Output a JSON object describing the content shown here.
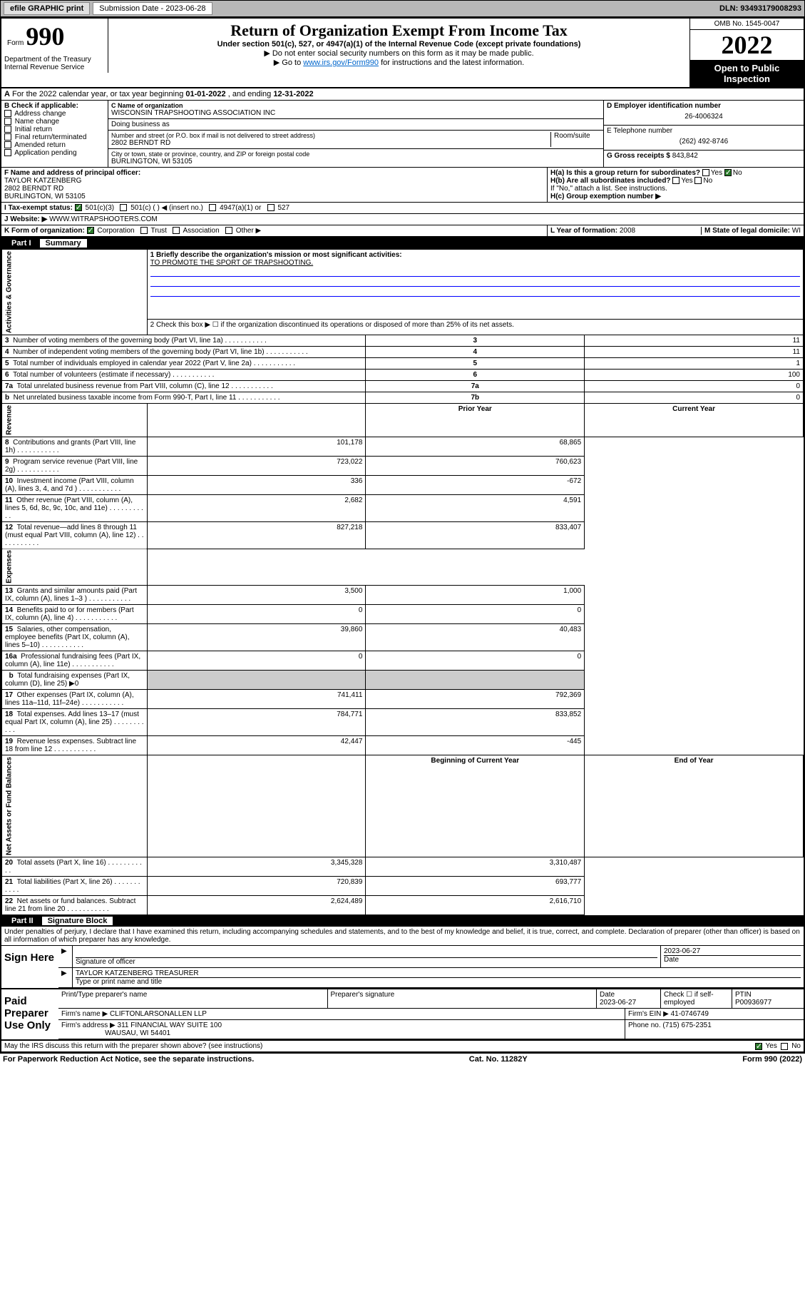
{
  "header": {
    "efile": "efile GRAPHIC print",
    "sub_label": "Submission Date - 2023-06-28",
    "dln": "DLN: 93493179008293"
  },
  "form": {
    "form_word": "Form",
    "form_num": "990",
    "title": "Return of Organization Exempt From Income Tax",
    "subtitle": "Under section 501(c), 527, or 4947(a)(1) of the Internal Revenue Code (except private foundations)",
    "note1": "▶ Do not enter social security numbers on this form as it may be made public.",
    "note2_pre": "▶ Go to ",
    "note2_link": "www.irs.gov/Form990",
    "note2_post": " for instructions and the latest information.",
    "omb": "OMB No. 1545-0047",
    "year": "2022",
    "open": "Open to Public Inspection",
    "dept": "Department of the Treasury Internal Revenue Service"
  },
  "line_a": {
    "label": "A",
    "text": "For the 2022 calendar year, or tax year beginning ",
    "begin": "01-01-2022",
    "mid": " , and ending ",
    "end": "12-31-2022"
  },
  "section_b": {
    "header": "B Check if applicable:",
    "items": [
      "Address change",
      "Name change",
      "Initial return",
      "Final return/terminated",
      "Amended return",
      "Application pending"
    ]
  },
  "section_c": {
    "name_label": "C Name of organization",
    "name": "WISCONSIN TRAPSHOOTING ASSOCIATION INC",
    "dba_label": "Doing business as",
    "addr_label": "Number and street (or P.O. box if mail is not delivered to street address)",
    "room_label": "Room/suite",
    "addr": "2802 BERNDT RD",
    "city_label": "City or town, state or province, country, and ZIP or foreign postal code",
    "city": "BURLINGTON, WI  53105"
  },
  "section_de": {
    "d_label": "D Employer identification number",
    "ein": "26-4006324",
    "e_label": "E Telephone number",
    "phone": "(262) 492-8746",
    "g_label": "G Gross receipts $ ",
    "gross": "843,842"
  },
  "section_f": {
    "label": "F Name and address of principal officer:",
    "name": "TAYLOR KATZENBERG",
    "addr1": "2802 BERNDT RD",
    "addr2": "BURLINGTON, WI  53105"
  },
  "section_h": {
    "a_label": "H(a)  Is this a group return for subordinates?",
    "a_yes": "Yes",
    "a_no": "No",
    "b_label": "H(b)  Are all subordinates included?",
    "b_yes": "Yes",
    "b_no": "No",
    "b_note": "If \"No,\" attach a list. See instructions.",
    "c_label": "H(c)  Group exemption number ▶"
  },
  "line_i": {
    "label": "I  Tax-exempt status:",
    "opt1": "501(c)(3)",
    "opt2": "501(c) (  ) ◀ (insert no.)",
    "opt3": "4947(a)(1) or",
    "opt4": "527"
  },
  "line_j": {
    "label": "J  Website: ▶",
    "url": "WWW.WITRAPSHOOTERS.COM"
  },
  "line_k": {
    "label": "K Form of organization:",
    "opts": [
      "Corporation",
      "Trust",
      "Association",
      "Other ▶"
    ],
    "l_label": "L Year of formation: ",
    "l_val": "2008",
    "m_label": "M State of legal domicile: ",
    "m_val": "WI"
  },
  "part1": {
    "hdr": "Part I",
    "title": "Summary",
    "q1": "1  Briefly describe the organization's mission or most significant activities:",
    "mission": "TO PROMOTE THE SPORT OF TRAPSHOOTING.",
    "q2": "2  Check this box ▶ ☐  if the organization discontinued its operations or disposed of more than 25% of its net assets.",
    "sides": [
      "Activities & Governance",
      "Revenue",
      "Expenses",
      "Net Assets or Fund Balances"
    ],
    "cols": [
      "Prior Year",
      "Current Year"
    ],
    "rows_gov": [
      {
        "n": "3",
        "d": "Number of voting members of the governing body (Part VI, line 1a)",
        "box": "3",
        "v": "11"
      },
      {
        "n": "4",
        "d": "Number of independent voting members of the governing body (Part VI, line 1b)",
        "box": "4",
        "v": "11"
      },
      {
        "n": "5",
        "d": "Total number of individuals employed in calendar year 2022 (Part V, line 2a)",
        "box": "5",
        "v": "1"
      },
      {
        "n": "6",
        "d": "Total number of volunteers (estimate if necessary)",
        "box": "6",
        "v": "100"
      },
      {
        "n": "7a",
        "d": "Total unrelated business revenue from Part VIII, column (C), line 12",
        "box": "7a",
        "v": "0"
      },
      {
        "n": "b",
        "d": "Net unrelated business taxable income from Form 990-T, Part I, line 11",
        "box": "7b",
        "v": "0"
      }
    ],
    "rows_rev": [
      {
        "n": "8",
        "d": "Contributions and grants (Part VIII, line 1h)",
        "py": "101,178",
        "cy": "68,865"
      },
      {
        "n": "9",
        "d": "Program service revenue (Part VIII, line 2g)",
        "py": "723,022",
        "cy": "760,623"
      },
      {
        "n": "10",
        "d": "Investment income (Part VIII, column (A), lines 3, 4, and 7d )",
        "py": "336",
        "cy": "-672"
      },
      {
        "n": "11",
        "d": "Other revenue (Part VIII, column (A), lines 5, 6d, 8c, 9c, 10c, and 11e)",
        "py": "2,682",
        "cy": "4,591"
      },
      {
        "n": "12",
        "d": "Total revenue—add lines 8 through 11 (must equal Part VIII, column (A), line 12)",
        "py": "827,218",
        "cy": "833,407"
      }
    ],
    "rows_exp": [
      {
        "n": "13",
        "d": "Grants and similar amounts paid (Part IX, column (A), lines 1–3 )",
        "py": "3,500",
        "cy": "1,000"
      },
      {
        "n": "14",
        "d": "Benefits paid to or for members (Part IX, column (A), line 4)",
        "py": "0",
        "cy": "0"
      },
      {
        "n": "15",
        "d": "Salaries, other compensation, employee benefits (Part IX, column (A), lines 5–10)",
        "py": "39,860",
        "cy": "40,483"
      },
      {
        "n": "16a",
        "d": "Professional fundraising fees (Part IX, column (A), line 11e)",
        "py": "0",
        "cy": "0"
      },
      {
        "n": "b",
        "d": "Total fundraising expenses (Part IX, column (D), line 25) ▶0",
        "py": "",
        "cy": "",
        "span": true
      },
      {
        "n": "17",
        "d": "Other expenses (Part IX, column (A), lines 11a–11d, 11f–24e)",
        "py": "741,411",
        "cy": "792,369"
      },
      {
        "n": "18",
        "d": "Total expenses. Add lines 13–17 (must equal Part IX, column (A), line 25)",
        "py": "784,771",
        "cy": "833,852"
      },
      {
        "n": "19",
        "d": "Revenue less expenses. Subtract line 18 from line 12",
        "py": "42,447",
        "cy": "-445"
      }
    ],
    "net_cols": [
      "Beginning of Current Year",
      "End of Year"
    ],
    "rows_net": [
      {
        "n": "20",
        "d": "Total assets (Part X, line 16)",
        "py": "3,345,328",
        "cy": "3,310,487"
      },
      {
        "n": "21",
        "d": "Total liabilities (Part X, line 26)",
        "py": "720,839",
        "cy": "693,777"
      },
      {
        "n": "22",
        "d": "Net assets or fund balances. Subtract line 21 from line 20",
        "py": "2,624,489",
        "cy": "2,616,710"
      }
    ]
  },
  "part2": {
    "hdr": "Part II",
    "title": "Signature Block",
    "penalty": "Under penalties of perjury, I declare that I have examined this return, including accompanying schedules and statements, and to the best of my knowledge and belief, it is true, correct, and complete. Declaration of preparer (other than officer) is based on all information of which preparer has any knowledge.",
    "sign_here": "Sign Here",
    "sig_officer": "Signature of officer",
    "date_lbl": "Date",
    "sig_date": "2023-06-27",
    "officer_name": "TAYLOR KATZENBERG TREASURER",
    "type_name": "Type or print name and title",
    "paid": "Paid Preparer Use Only",
    "prep_name_lbl": "Print/Type preparer's name",
    "prep_sig_lbl": "Preparer's signature",
    "prep_date": "2023-06-27",
    "self_emp": "Check ☐ if self-employed",
    "ptin_lbl": "PTIN",
    "ptin": "P00936977",
    "firm_name_lbl": "Firm's name   ▶",
    "firm_name": "CLIFTONLARSONALLEN LLP",
    "firm_ein_lbl": "Firm's EIN ▶",
    "firm_ein": "41-0746749",
    "firm_addr_lbl": "Firm's address ▶",
    "firm_addr1": "311 FINANCIAL WAY SUITE 100",
    "firm_addr2": "WAUSAU, WI  54401",
    "firm_phone_lbl": "Phone no. ",
    "firm_phone": "(715) 675-2351",
    "may_irs": "May the IRS discuss this return with the preparer shown above? (see instructions)",
    "yes": "Yes",
    "no": "No"
  },
  "footer": {
    "left": "For Paperwork Reduction Act Notice, see the separate instructions.",
    "mid": "Cat. No. 11282Y",
    "right": "Form 990 (2022)"
  }
}
